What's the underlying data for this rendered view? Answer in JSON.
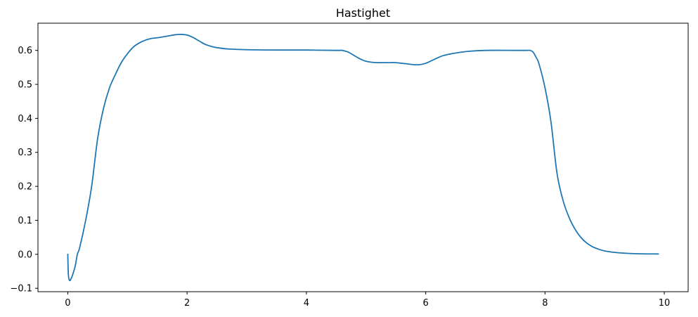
{
  "chart_data": {
    "type": "line",
    "title": "Hastighet",
    "xlabel": "",
    "ylabel": "",
    "xlim": [
      -0.5,
      10.4
    ],
    "ylim": [
      -0.11,
      0.68
    ],
    "x_ticks": [
      0,
      2,
      4,
      6,
      8,
      10
    ],
    "x_tick_labels": [
      "0",
      "2",
      "4",
      "6",
      "8",
      "10"
    ],
    "y_ticks": [
      -0.1,
      0.0,
      0.1,
      0.2,
      0.3,
      0.4,
      0.5,
      0.6
    ],
    "y_tick_labels": [
      "−0.1",
      "0.0",
      "0.1",
      "0.2",
      "0.3",
      "0.4",
      "0.5",
      "0.6"
    ],
    "grid": false,
    "series": [
      {
        "color": "#1f77b4",
        "x": [
          0.0,
          0.01,
          0.03,
          0.06,
          0.1,
          0.13,
          0.16,
          0.2,
          0.3,
          0.4,
          0.5,
          0.6,
          0.7,
          0.8,
          0.9,
          1.0,
          1.1,
          1.2,
          1.3,
          1.4,
          1.5,
          1.6,
          1.7,
          1.8,
          1.9,
          2.0,
          2.1,
          2.2,
          2.3,
          2.4,
          2.5,
          2.7,
          3.0,
          3.5,
          4.0,
          4.5,
          4.6,
          4.7,
          4.8,
          4.9,
          5.0,
          5.1,
          5.2,
          5.3,
          5.4,
          5.5,
          5.6,
          5.7,
          5.8,
          5.9,
          6.0,
          6.1,
          6.2,
          6.3,
          6.5,
          6.7,
          7.0,
          7.5,
          7.7,
          7.75,
          7.8,
          7.85,
          7.9,
          8.0,
          8.1,
          8.2,
          8.3,
          8.4,
          8.5,
          8.6,
          8.7,
          8.8,
          8.9,
          9.0,
          9.2,
          9.5,
          9.9
        ],
        "values": [
          0.0,
          -0.06,
          -0.077,
          -0.07,
          -0.05,
          -0.03,
          0.0,
          0.02,
          0.1,
          0.2,
          0.34,
          0.43,
          0.49,
          0.53,
          0.565,
          0.59,
          0.61,
          0.622,
          0.63,
          0.635,
          0.637,
          0.64,
          0.643,
          0.646,
          0.647,
          0.645,
          0.638,
          0.628,
          0.618,
          0.612,
          0.608,
          0.604,
          0.602,
          0.601,
          0.601,
          0.6,
          0.6,
          0.595,
          0.585,
          0.575,
          0.568,
          0.565,
          0.564,
          0.564,
          0.564,
          0.564,
          0.562,
          0.56,
          0.558,
          0.558,
          0.562,
          0.57,
          0.578,
          0.585,
          0.592,
          0.597,
          0.6,
          0.6,
          0.6,
          0.6,
          0.595,
          0.58,
          0.56,
          0.49,
          0.39,
          0.24,
          0.16,
          0.11,
          0.075,
          0.05,
          0.033,
          0.022,
          0.015,
          0.01,
          0.005,
          0.002,
          0.001
        ]
      }
    ]
  }
}
